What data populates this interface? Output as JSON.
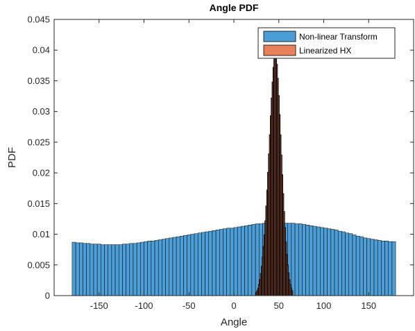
{
  "chart_data": {
    "type": "bar",
    "title": "Angle PDF",
    "xlabel": "Angle",
    "ylabel": "PDF",
    "xlim": [
      -200,
      200
    ],
    "ylim": [
      0,
      0.045
    ],
    "xticks": [
      -150,
      -100,
      -50,
      0,
      50,
      100,
      150
    ],
    "yticks": [
      0,
      0.005,
      0.01,
      0.015,
      0.02,
      0.025,
      0.03,
      0.035,
      0.04,
      0.045
    ],
    "ytick_labels": [
      "0",
      "0.005",
      "0.01",
      "0.015",
      "0.02",
      "0.025",
      "0.03",
      "0.035",
      "0.04",
      "0.045"
    ],
    "grid": false,
    "legend_position": "top-right",
    "series": [
      {
        "name": "Non-linear Transform",
        "color": "#4d9dd6",
        "bin_width": 4,
        "x": [
          -178,
          -174,
          -170,
          -166,
          -162,
          -158,
          -154,
          -150,
          -146,
          -142,
          -138,
          -134,
          -130,
          -126,
          -122,
          -118,
          -114,
          -110,
          -106,
          -102,
          -98,
          -94,
          -90,
          -86,
          -82,
          -78,
          -74,
          -70,
          -66,
          -62,
          -58,
          -54,
          -50,
          -46,
          -42,
          -38,
          -34,
          -30,
          -26,
          -22,
          -18,
          -14,
          -10,
          -6,
          -2,
          2,
          6,
          10,
          14,
          18,
          22,
          26,
          30,
          34,
          38,
          42,
          46,
          50,
          54,
          58,
          62,
          66,
          70,
          74,
          78,
          82,
          86,
          90,
          94,
          98,
          102,
          106,
          110,
          114,
          118,
          122,
          126,
          130,
          134,
          138,
          142,
          146,
          150,
          154,
          158,
          162,
          166,
          170,
          174,
          178
        ],
        "values": [
          0.0087,
          0.0086,
          0.0086,
          0.0085,
          0.0085,
          0.0084,
          0.0084,
          0.0084,
          0.0083,
          0.0083,
          0.0083,
          0.0083,
          0.0083,
          0.0083,
          0.0084,
          0.0084,
          0.0085,
          0.0085,
          0.0086,
          0.0087,
          0.0088,
          0.0089,
          0.0089,
          0.009,
          0.0091,
          0.0092,
          0.0093,
          0.0094,
          0.0095,
          0.0096,
          0.0097,
          0.0098,
          0.0099,
          0.01,
          0.0101,
          0.0102,
          0.0103,
          0.0104,
          0.0105,
          0.0106,
          0.0107,
          0.0108,
          0.0109,
          0.011,
          0.011,
          0.0111,
          0.0112,
          0.0113,
          0.0114,
          0.0115,
          0.0116,
          0.0117,
          0.0117,
          0.0118,
          0.0118,
          0.0118,
          0.0118,
          0.0118,
          0.0118,
          0.0118,
          0.0118,
          0.0118,
          0.0117,
          0.0117,
          0.0116,
          0.0115,
          0.0114,
          0.0113,
          0.0112,
          0.0111,
          0.011,
          0.0109,
          0.0108,
          0.0107,
          0.0105,
          0.0104,
          0.0102,
          0.0101,
          0.0099,
          0.0097,
          0.0096,
          0.0094,
          0.0093,
          0.0092,
          0.0091,
          0.009,
          0.0089,
          0.0089,
          0.0088,
          0.0088
        ]
      },
      {
        "name": "Linearized HX",
        "color": "#e8825a",
        "bin_width": 1,
        "x": [
          25,
          26,
          27,
          28,
          29,
          30,
          31,
          32,
          33,
          34,
          35,
          36,
          37,
          38,
          39,
          40,
          41,
          42,
          43,
          44,
          45,
          46,
          47,
          48,
          49,
          50,
          51,
          52,
          53,
          54,
          55,
          56,
          57,
          58,
          59,
          60,
          61,
          62,
          63,
          64,
          65
        ],
        "values": [
          0.0005,
          0.0008,
          0.0012,
          0.0018,
          0.0026,
          0.0036,
          0.0048,
          0.0063,
          0.008,
          0.0099,
          0.0122,
          0.0146,
          0.0172,
          0.0201,
          0.0231,
          0.0262,
          0.0293,
          0.0322,
          0.0348,
          0.0372,
          0.039,
          0.0399,
          0.0394,
          0.0377,
          0.0354,
          0.0326,
          0.0295,
          0.0262,
          0.0229,
          0.0197,
          0.0166,
          0.0137,
          0.0111,
          0.0087,
          0.0067,
          0.005,
          0.0037,
          0.0026,
          0.0018,
          0.0012,
          0.0008
        ]
      }
    ]
  }
}
